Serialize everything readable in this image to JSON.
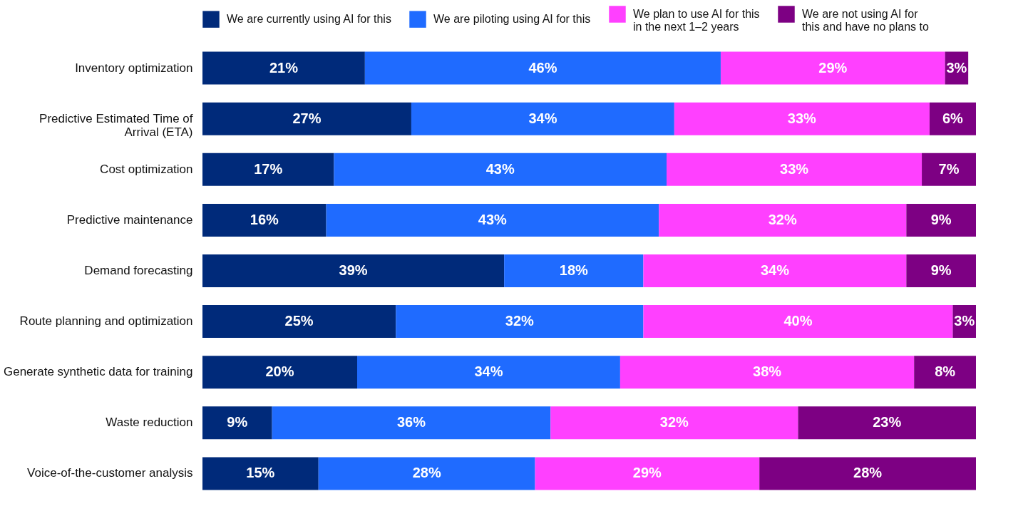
{
  "chart_data": {
    "type": "bar",
    "orientation": "horizontal",
    "stacked": true,
    "legend": "top",
    "grid": false,
    "categories": [
      "Inventory optimization",
      "Predictive Estimated Time of Arrival (ETA)",
      "Cost optimization",
      "Predictive maintenance",
      "Demand forecasting",
      "Route planning and optimization",
      "Generate synthetic data for training",
      "Waste reduction",
      "Voice-of-the-customer analysis"
    ],
    "series": [
      {
        "name": "We are currently using AI for this",
        "color": "#002a7a",
        "values": [
          21,
          27,
          17,
          16,
          39,
          25,
          20,
          9,
          15
        ],
        "value_labels": [
          "21%",
          "27%",
          "17%",
          "16%",
          "39%",
          "25%",
          "20%",
          "9%",
          "15%"
        ]
      },
      {
        "name": "We are piloting using AI for this",
        "color": "#1f6bff",
        "values": [
          46,
          34,
          43,
          43,
          18,
          32,
          34,
          36,
          28
        ],
        "value_labels": [
          "46%",
          "34%",
          "43%",
          "43%",
          "18%",
          "32%",
          "34%",
          "36%",
          "28%"
        ]
      },
      {
        "name": "We plan to use AI for this in the next 1–2 years",
        "color": "#ff40ff",
        "values": [
          29,
          33,
          33,
          32,
          34,
          40,
          38,
          32,
          29
        ],
        "value_labels": [
          "29%",
          "33%",
          "33%",
          "32%",
          "34%",
          "40%",
          "38%",
          "32%",
          "29%"
        ]
      },
      {
        "name": "We are not using AI for this and have no plans to",
        "color": "#7d0083",
        "values": [
          3,
          6,
          7,
          9,
          9,
          3,
          8,
          23,
          28
        ],
        "value_labels": [
          "3%",
          "6%",
          "7%",
          "9%",
          "9%",
          "3%",
          "8%",
          "23%",
          "28%"
        ]
      }
    ]
  }
}
